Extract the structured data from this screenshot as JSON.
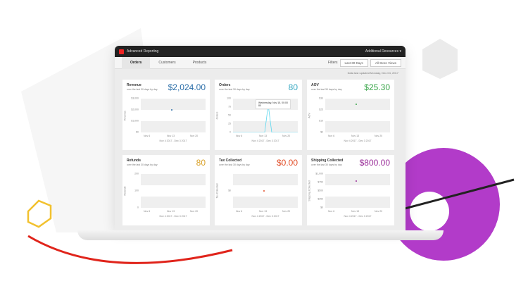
{
  "app": {
    "title": "Advanced Reporting",
    "resources_menu": "Additional Resources ▾"
  },
  "tabs": [
    {
      "label": "Orders",
      "active": true
    },
    {
      "label": "Customers"
    },
    {
      "label": "Products"
    }
  ],
  "filters": {
    "label": "Filters",
    "range": "Last 30 Days",
    "store": "All Store Views"
  },
  "updated": "Data last updated Monday, Dec 04, 2017",
  "cards": [
    {
      "title": "Revenue",
      "subtitle": "over the last 30 days by day",
      "value": "$2,024.00",
      "color": "#2b6ea8",
      "ylabel": "Revenue",
      "yticks": [
        "$3,000",
        "$2,000",
        "$1,000",
        "$0"
      ],
      "xticks": [
        "Nov 6",
        "Nov 13",
        "Nov 20"
      ],
      "range": "Nov 4 2017 - Dec 3 2017",
      "point": {
        "x": "Nov 15",
        "y": 2024
      }
    },
    {
      "title": "Orders",
      "subtitle": "over the last 30 days by day",
      "value": "80",
      "color": "#3aa9c2",
      "ylabel": "Orders",
      "yticks": [
        "100",
        "75",
        "50",
        "25",
        "0"
      ],
      "xticks": [
        "Nov 6",
        "Nov 13",
        "Nov 20"
      ],
      "range": "Nov 4 2017 - Dec 3 2017",
      "tooltip": "Wednesday, Nov 15, 00:00",
      "tooltip_value": "80",
      "point": {
        "x": "Nov 15",
        "y": 80
      }
    },
    {
      "title": "AOV",
      "subtitle": "over the last 30 days by day",
      "value": "$25.30",
      "color": "#3aa64a",
      "ylabel": "AOV",
      "yticks": [
        "$30",
        "$25",
        "$10",
        "$0"
      ],
      "xticks": [
        "Nov 6",
        "Nov 13",
        "Nov 20"
      ],
      "range": "Nov 4 2017 - Dec 3 2017",
      "point": {
        "x": "Nov 15",
        "y": 25.3
      }
    },
    {
      "title": "Refunds",
      "subtitle": "over the last 30 days by day",
      "value": "80",
      "color": "#d9a22a",
      "ylabel": "Refunds",
      "yticks": [
        "200",
        "100",
        "0"
      ],
      "xticks": [
        "Nov 6",
        "Nov 13",
        "Nov 20"
      ],
      "range": "Nov 4 2017 - Dec 3 2017"
    },
    {
      "title": "Tax Collected",
      "subtitle": "over the last 30 days by day",
      "value": "$0.00",
      "color": "#e2502b",
      "ylabel": "Tax Collected",
      "yticks": [
        "$0"
      ],
      "xticks": [
        "Nov 6",
        "Nov 13",
        "Nov 20"
      ],
      "range": "Nov 4 2017 - Dec 3 2017",
      "point": {
        "x": "Nov 15",
        "y": 0
      }
    },
    {
      "title": "Shipping Collected",
      "subtitle": "over the last 30 days by day",
      "value": "$800.00",
      "color": "#9b2f9a",
      "ylabel": "Shipping Collected",
      "yticks": [
        "$1,000",
        "$750",
        "$500",
        "$250",
        "$0"
      ],
      "xticks": [
        "Nov 6",
        "Nov 13",
        "Nov 20"
      ],
      "range": "Nov 4 2017 - Dec 3 2017",
      "point": {
        "x": "Nov 15",
        "y": 800
      }
    }
  ]
}
